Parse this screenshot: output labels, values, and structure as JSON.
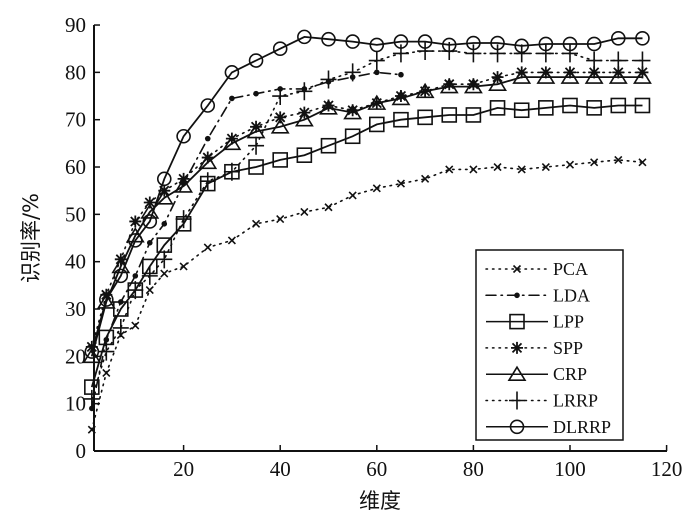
{
  "chart_data": {
    "type": "line",
    "title": "",
    "xlabel": "维度",
    "ylabel": "识别率/%",
    "xlim": [
      1,
      120
    ],
    "ylim": [
      0,
      90
    ],
    "xticks": [
      20,
      40,
      60,
      80,
      100,
      120
    ],
    "yticks": [
      0,
      10,
      20,
      30,
      40,
      50,
      60,
      70,
      80,
      90
    ],
    "grid": false,
    "legend_position": "bottom-right",
    "series": [
      {
        "name": "PCA",
        "style": "dotted",
        "marker": "x",
        "x": [
          1,
          4,
          7,
          10,
          13,
          16,
          20,
          25,
          30,
          35,
          40,
          45,
          50,
          55,
          60,
          65,
          70,
          75,
          80,
          85,
          90,
          95,
          100,
          105,
          110,
          115
        ],
        "y": [
          4.5,
          16.5,
          24.5,
          26.5,
          34,
          37.5,
          39,
          43,
          44.5,
          48,
          49,
          50.5,
          51.5,
          54,
          55.5,
          56.5,
          57.5,
          59.5,
          59.5,
          60,
          59.5,
          60,
          60.5,
          61,
          61.5,
          61
        ]
      },
      {
        "name": "LDA",
        "style": "dashdot",
        "marker": "dot",
        "x": [
          1,
          4,
          7,
          10,
          13,
          16,
          20,
          25,
          30,
          35,
          40,
          45,
          50,
          55,
          60,
          65
        ],
        "y": [
          9,
          23.5,
          31.5,
          37,
          44,
          48,
          56.5,
          66,
          74.5,
          75.5,
          76.5,
          76.5,
          78,
          79,
          80,
          79.5
        ]
      },
      {
        "name": "LPP",
        "style": "solid",
        "marker": "square",
        "x": [
          1,
          4,
          7,
          10,
          13,
          16,
          20,
          25,
          30,
          35,
          40,
          45,
          50,
          55,
          60,
          65,
          70,
          75,
          80,
          85,
          90,
          95,
          100,
          105,
          110,
          115
        ],
        "y": [
          13.5,
          24,
          30,
          34,
          39,
          43.5,
          48,
          56.5,
          59,
          60,
          61.5,
          62.5,
          64.5,
          66.5,
          69,
          70,
          70.5,
          71,
          71,
          72.5,
          72,
          72.5,
          73,
          72.5,
          73,
          73
        ]
      },
      {
        "name": "SPP",
        "style": "dotted",
        "marker": "star",
        "x": [
          1,
          4,
          7,
          10,
          13,
          16,
          20,
          25,
          30,
          35,
          40,
          45,
          50,
          55,
          60,
          65,
          70,
          75,
          80,
          85,
          90,
          95,
          100,
          105,
          110,
          115
        ],
        "y": [
          22,
          33,
          40.5,
          48.5,
          52.5,
          55,
          57.5,
          62,
          66,
          68.5,
          70.5,
          71.5,
          73,
          72,
          73.5,
          75,
          76,
          77.5,
          77.5,
          79,
          80,
          80,
          80,
          80,
          80,
          80
        ]
      },
      {
        "name": "CRP",
        "style": "solid",
        "marker": "triangle",
        "x": [
          1,
          4,
          7,
          10,
          13,
          16,
          20,
          25,
          30,
          35,
          40,
          45,
          50,
          55,
          60,
          65,
          70,
          75,
          80,
          85,
          90,
          95,
          100,
          105,
          110,
          115
        ],
        "y": [
          20,
          31.5,
          39,
          45.5,
          50.5,
          53.5,
          56,
          61,
          65,
          67.5,
          68.5,
          70,
          72.5,
          71.5,
          73.5,
          74.5,
          76,
          77,
          77,
          77.5,
          79,
          79,
          79,
          79,
          79,
          79
        ]
      },
      {
        "name": "LRRP",
        "style": "dotted",
        "marker": "plus",
        "x": [
          1,
          4,
          7,
          10,
          13,
          16,
          20,
          25,
          30,
          35,
          40,
          45,
          50,
          55,
          60,
          65,
          70,
          75,
          80,
          85,
          90,
          95,
          100,
          105,
          110,
          115
        ],
        "y": [
          11,
          21,
          26,
          34,
          37,
          40.5,
          49,
          57,
          59,
          64.5,
          75,
          76,
          78.5,
          80,
          82.5,
          84,
          84.5,
          84.5,
          84,
          84,
          84,
          84,
          84,
          82.5,
          82.5,
          82.5
        ]
      },
      {
        "name": "DLRRP",
        "style": "solid",
        "marker": "circle",
        "x": [
          1,
          4,
          7,
          10,
          13,
          16,
          20,
          25,
          30,
          35,
          40,
          45,
          50,
          55,
          60,
          65,
          70,
          75,
          80,
          85,
          90,
          95,
          100,
          105,
          110,
          115
        ],
        "y": [
          21,
          32,
          37,
          44.5,
          48.5,
          57.5,
          66.5,
          73,
          80,
          82.5,
          85,
          87.5,
          87,
          86.5,
          85.8,
          86.5,
          86.5,
          85.8,
          86.2,
          86.2,
          85.6,
          86,
          86,
          86,
          87.2,
          87.2
        ]
      }
    ]
  }
}
